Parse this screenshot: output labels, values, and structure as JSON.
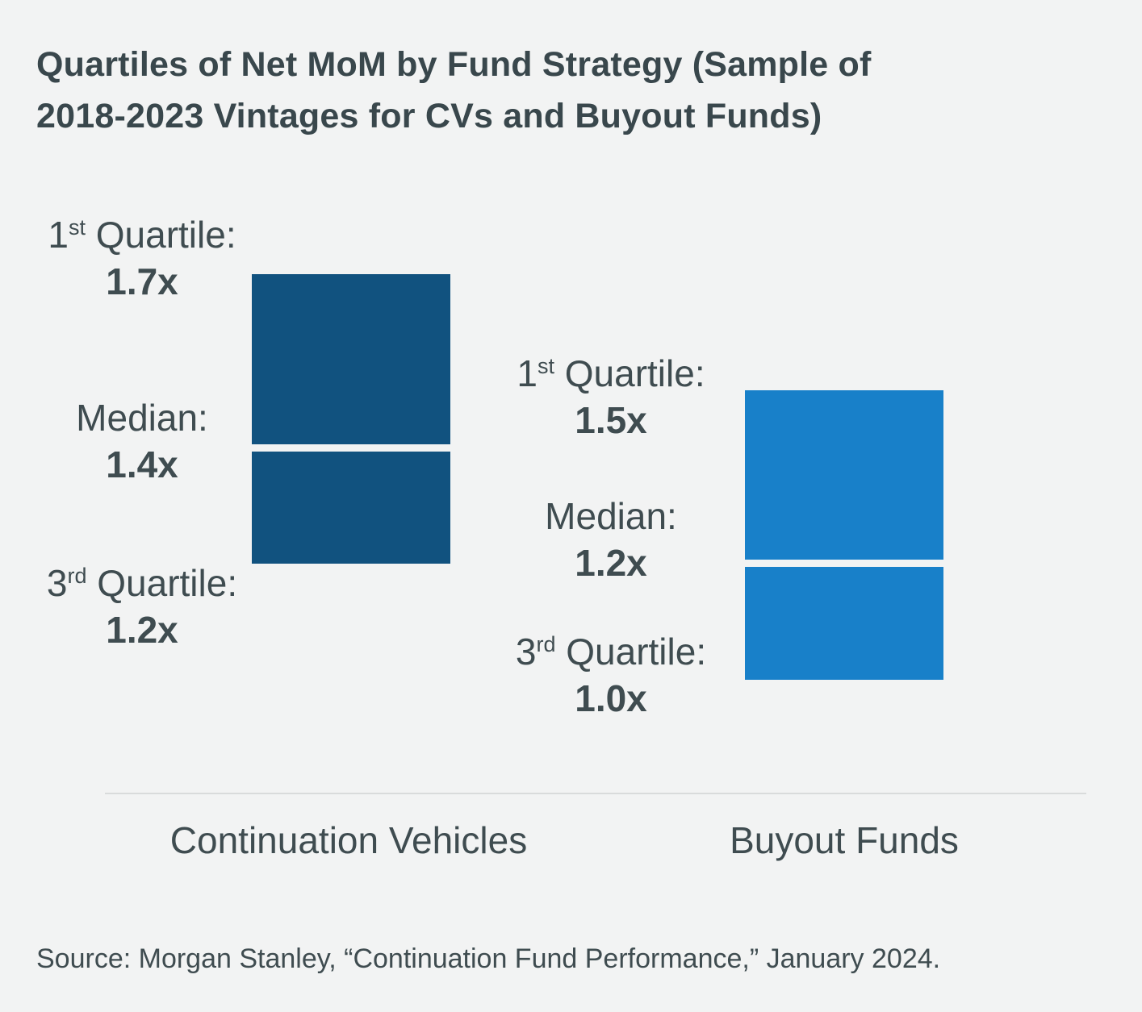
{
  "title": "Quartiles of Net MoM by Fund Strategy (Sample of 2018-2023 Vintages for CVs and Buyout Funds)",
  "source_note": "Source: Morgan Stanley, “Continuation Fund Performance,” January 2024.",
  "colors": {
    "background": "#F2F3F3",
    "text": "#3F4C50",
    "cv_bar": "#11527F",
    "buyout_bar": "#1880C9",
    "median_gap": "#FBFCFC",
    "divider": "#D9DBDB"
  },
  "groups": [
    {
      "name": "Continuation Vehicles",
      "bar_color": "#11527F",
      "q1": {
        "num": "1",
        "sup": "st",
        "rest": " Quartile:",
        "value": "1.7x"
      },
      "median": {
        "label": "Median:",
        "value": "1.4x"
      },
      "q3": {
        "num": "3",
        "sup": "rd",
        "rest": " Quartile:",
        "value": "1.2x"
      }
    },
    {
      "name": "Buyout Funds",
      "bar_color": "#1880C9",
      "q1": {
        "num": "1",
        "sup": "st",
        "rest": " Quartile:",
        "value": "1.5x"
      },
      "median": {
        "label": "Median:",
        "value": "1.2x"
      },
      "q3": {
        "num": "3",
        "sup": "rd",
        "rest": " Quartile:",
        "value": "1.0x"
      }
    }
  ],
  "chart_data": {
    "type": "bar",
    "title": "Quartiles of Net MoM by Fund Strategy (Sample of 2018-2023 Vintages for CVs and Buyout Funds)",
    "categories": [
      "Continuation Vehicles",
      "Buyout Funds"
    ],
    "series": [
      {
        "name": "1st Quartile",
        "values": [
          1.7,
          1.5
        ]
      },
      {
        "name": "Median",
        "values": [
          1.4,
          1.2
        ]
      },
      {
        "name": "3rd Quartile",
        "values": [
          1.2,
          1.0
        ]
      }
    ],
    "value_unit": "x (net MoM multiple)",
    "value_range_shown": [
      1.0,
      1.7
    ],
    "grid": false,
    "legend": false,
    "annotation_style": "quartile range bars with white median line, labels left of each bar",
    "source": "Morgan Stanley, “Continuation Fund Performance,” January 2024"
  }
}
